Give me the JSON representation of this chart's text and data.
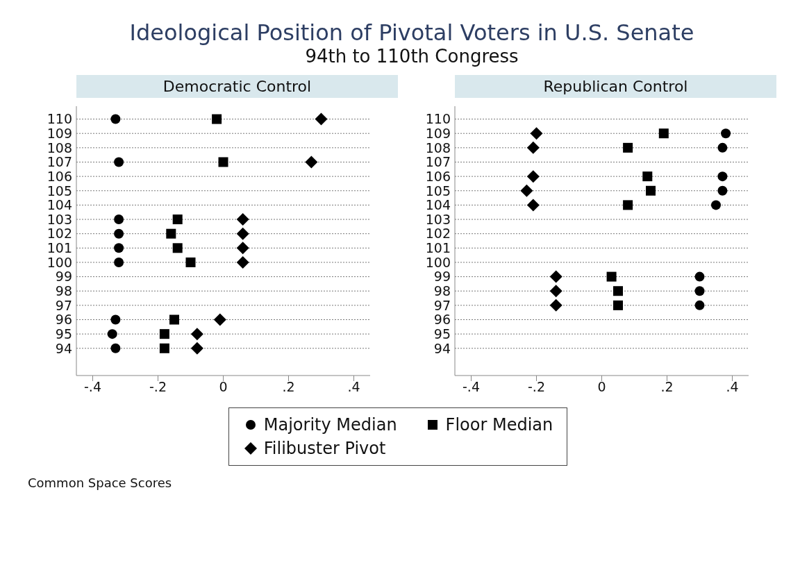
{
  "chart_data": [
    {
      "type": "scatter",
      "orientation": "horizontal",
      "title": "Democratic Control",
      "annotations": [
        "Ideological Position of Pivotal Voters in U.S. Senate",
        "94th to 110th Congress",
        "Common Space Scores"
      ],
      "categories": [
        "110",
        "109",
        "108",
        "107",
        "106",
        "105",
        "104",
        "103",
        "102",
        "101",
        "100",
        "99",
        "98",
        "97",
        "96",
        "95",
        "94"
      ],
      "series": [
        {
          "name": "Majority Median",
          "color": "#000000",
          "marker": "circle",
          "values": [
            -0.33,
            null,
            null,
            -0.32,
            null,
            null,
            null,
            -0.32,
            -0.32,
            -0.32,
            -0.32,
            null,
            null,
            null,
            -0.33,
            -0.34,
            -0.33
          ]
        },
        {
          "name": "Floor Median",
          "color": "#000000",
          "marker": "square",
          "values": [
            -0.02,
            null,
            null,
            0.0,
            null,
            null,
            null,
            -0.14,
            -0.16,
            -0.14,
            -0.1,
            null,
            null,
            null,
            -0.15,
            -0.18,
            -0.18
          ]
        },
        {
          "name": "Filibuster Pivot",
          "color": "#000000",
          "marker": "diamond",
          "values": [
            0.3,
            null,
            null,
            0.27,
            null,
            null,
            null,
            0.06,
            0.06,
            0.06,
            0.06,
            null,
            null,
            null,
            -0.01,
            -0.08,
            -0.08
          ]
        }
      ],
      "xlim": [
        -0.45,
        0.45
      ],
      "xticks": [
        {
          "value": -0.4,
          "label": "-.4"
        },
        {
          "value": -0.2,
          "label": "-.2"
        },
        0,
        {
          "value": 0.2,
          "label": ".2"
        },
        {
          "value": 0.4,
          "label": ".4"
        }
      ],
      "grid": "y",
      "line_style": "dotted",
      "legend": "bottom"
    },
    {
      "type": "scatter",
      "orientation": "horizontal",
      "title": "Republican Control",
      "categories": [
        "110",
        "109",
        "108",
        "107",
        "106",
        "105",
        "104",
        "103",
        "102",
        "101",
        "100",
        "99",
        "98",
        "97",
        "96",
        "95",
        "94"
      ],
      "series": [
        {
          "color": "#000000",
          "marker": "circle",
          "values": [
            null,
            0.38,
            0.37,
            null,
            0.37,
            0.37,
            0.35,
            null,
            null,
            null,
            null,
            0.3,
            0.3,
            0.3,
            null,
            null,
            null
          ]
        },
        {
          "color": "#000000",
          "marker": "square",
          "values": [
            null,
            0.19,
            0.08,
            null,
            0.14,
            0.15,
            0.08,
            null,
            null,
            null,
            null,
            0.03,
            0.05,
            0.05,
            null,
            null,
            null
          ]
        },
        {
          "color": "#000000",
          "marker": "diamond",
          "values": [
            null,
            -0.2,
            -0.21,
            null,
            -0.21,
            -0.23,
            -0.21,
            null,
            null,
            null,
            null,
            -0.14,
            -0.14,
            -0.14,
            null,
            null,
            null
          ]
        }
      ],
      "xlim": [
        -0.45,
        0.45
      ],
      "xticks": [
        {
          "value": -0.4,
          "label": "-.4"
        },
        {
          "value": -0.2,
          "label": "-.2"
        },
        0,
        {
          "value": 0.2,
          "label": ".2"
        },
        {
          "value": 0.4,
          "label": ".4"
        }
      ],
      "grid": "y",
      "line_style": "dotted"
    }
  ]
}
